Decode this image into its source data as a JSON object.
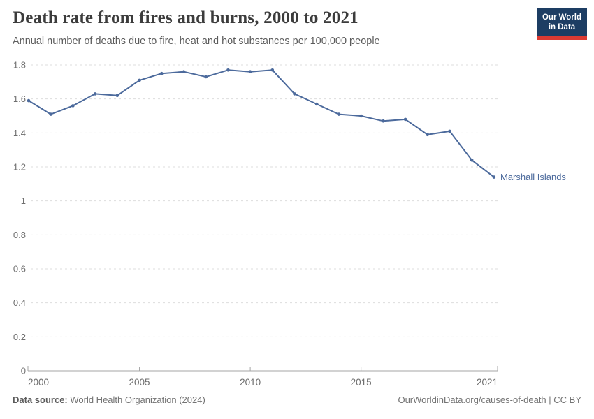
{
  "header": {
    "title": "Death rate from fires and burns, 2000 to 2021",
    "subtitle": "Annual number of deaths due to fire, heat and hot substances per 100,000 people",
    "logo": {
      "line1": "Our World",
      "line2": "in Data"
    }
  },
  "footer": {
    "source_label": "Data source:",
    "source_value": " World Health Organization (2024)",
    "attribution": "OurWorldinData.org/causes-of-death | CC BY"
  },
  "colors": {
    "line": "#4C6A9C",
    "entity_label": "#4C6A9C",
    "axis_text": "#6e6e6e",
    "gridline": "#dddddd",
    "axis_line": "#a5a5a5",
    "logo_bg": "#1d3d63",
    "logo_accent": "#dc3a32"
  },
  "chart_data": {
    "type": "line",
    "title": "Death rate from fires and burns, 2000 to 2021",
    "subtitle": "Annual number of deaths due to fire, heat and hot substances per 100,000 people",
    "xlabel": "",
    "ylabel": "",
    "xlim": [
      2000,
      2021
    ],
    "ylim": [
      0,
      1.8
    ],
    "grid": "dashed-horizontal",
    "legend_position": "end-of-line-label",
    "x_ticks": [
      2000,
      2005,
      2010,
      2015,
      2021
    ],
    "y_ticks": [
      0,
      0.2,
      0.4,
      0.6,
      0.8,
      1,
      1.2,
      1.4,
      1.6,
      1.8
    ],
    "entity_label": "Marshall Islands",
    "series": [
      {
        "name": "Marshall Islands",
        "color": "#4C6A9C",
        "x": [
          2000,
          2001,
          2002,
          2003,
          2004,
          2005,
          2006,
          2007,
          2008,
          2009,
          2010,
          2011,
          2012,
          2013,
          2014,
          2015,
          2016,
          2017,
          2018,
          2019,
          2020,
          2021
        ],
        "values": [
          1.59,
          1.51,
          1.56,
          1.63,
          1.62,
          1.71,
          1.75,
          1.76,
          1.73,
          1.77,
          1.76,
          1.77,
          1.63,
          1.57,
          1.51,
          1.5,
          1.47,
          1.48,
          1.39,
          1.41,
          1.24,
          1.14
        ]
      }
    ]
  }
}
